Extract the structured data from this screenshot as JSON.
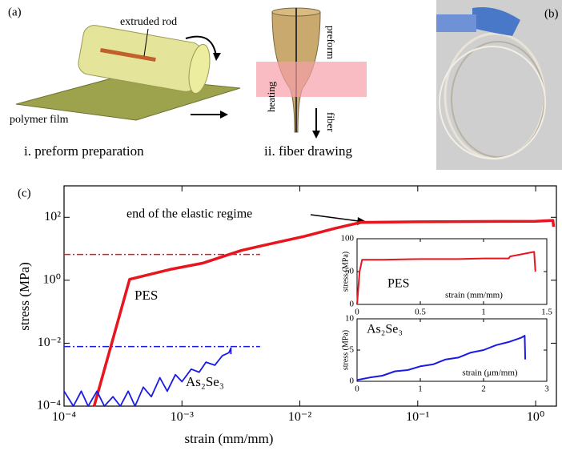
{
  "panel_a": {
    "label": "(a)",
    "rod_label": "extruded rod",
    "film_label": "polymer film",
    "step1": "i. preform preparation",
    "preform_label": "preform",
    "heating_label": "heating",
    "fiber_label": "fiber",
    "step2": "ii. fiber drawing"
  },
  "panel_b": {
    "label": "(b)"
  },
  "panel_c": {
    "label": "(c)"
  },
  "chart_data": [
    {
      "type": "line",
      "xscale": "log",
      "yscale": "log",
      "xlabel": "strain (mm/mm)",
      "ylabel": "stress (MPa)",
      "annotations": [
        {
          "text": "end of the elastic regime"
        }
      ],
      "xlim": [
        0.0001,
        1.5
      ],
      "ylim": [
        0.0001,
        1000
      ],
      "xticks": [
        {
          "value": 0.0001,
          "label": "10⁻⁴"
        },
        {
          "value": 0.001,
          "label": "10⁻³"
        },
        {
          "value": 0.01,
          "label": "10⁻²"
        },
        {
          "value": 0.1,
          "label": "10⁻¹"
        },
        {
          "value": 1,
          "label": "10⁰"
        }
      ],
      "yticks": [
        {
          "value": 0.0001,
          "label": "10⁻⁴"
        },
        {
          "value": 0.01,
          "label": "10⁻²"
        },
        {
          "value": 1,
          "label": "10⁰"
        },
        {
          "value": 100,
          "label": "10²"
        }
      ],
      "hlines": [
        {
          "y": 6.6,
          "x": [
            0.0001,
            0.0046
          ],
          "color": "#e8141e"
        },
        {
          "y": 0.0078,
          "x": [
            0.0001,
            0.0046
          ],
          "color": "#1a1ae6"
        }
      ],
      "series": [
        {
          "name": "PES",
          "color": "#e8141e",
          "x": [
            0.00018,
            0.00036,
            0.00079,
            0.0015,
            0.0032,
            0.005,
            0.011,
            0.02,
            0.033,
            0.1,
            0.5,
            1.0,
            1.4,
            1.42
          ],
          "values": [
            0.0001,
            1.07,
            2.2,
            3.5,
            8.9,
            13,
            25,
            45,
            69,
            72,
            74,
            75,
            80,
            50
          ]
        },
        {
          "name": "As₂Se₃",
          "color": "#1a1ae6",
          "x": [
            0.0001,
            0.00012,
            0.00014,
            0.00016,
            0.00019,
            0.00022,
            0.00026,
            0.0003,
            0.00035,
            0.0004,
            0.00047,
            0.00055,
            0.00065,
            0.00075,
            0.00088,
            0.001,
            0.0012,
            0.0014,
            0.0016,
            0.0019,
            0.0022,
            0.0025,
            0.0026,
            0.0026
          ],
          "values": [
            0.0003,
            0.0001,
            0.0003,
            0.0001,
            0.0003,
            0.0001,
            0.0002,
            0.0001,
            0.0003,
            0.0001,
            0.0004,
            0.0002,
            0.0008,
            0.0003,
            0.001,
            0.0006,
            0.0015,
            0.0012,
            0.0025,
            0.002,
            0.004,
            0.005,
            0.007,
            0.0045
          ]
        }
      ]
    },
    {
      "type": "line",
      "xlabel": "strain (mm/mm)",
      "ylabel": "stress (MPa)",
      "xlim": [
        0,
        1.5
      ],
      "ylim": [
        0,
        100
      ],
      "xticks": [
        0,
        0.5,
        1,
        1.5
      ],
      "yticks": [
        0,
        50,
        100
      ],
      "series": [
        {
          "name": "PES",
          "color": "#e8141e",
          "x": [
            0,
            0.02,
            0.04,
            0.2,
            0.5,
            0.8,
            1.0,
            1.2,
            1.21,
            1.4,
            1.41
          ],
          "values": [
            0,
            50,
            68,
            68,
            69,
            69,
            70,
            70,
            73,
            80,
            50
          ]
        }
      ]
    },
    {
      "type": "line",
      "xlabel": "strain (μm/mm)",
      "ylabel": "stress (MPa)",
      "xlim": [
        0,
        3
      ],
      "ylim": [
        0,
        10
      ],
      "xticks": [
        0,
        1,
        2,
        3
      ],
      "yticks": [
        0,
        5,
        10
      ],
      "series": [
        {
          "name": "As₂Se₃",
          "color": "#1a1ae6",
          "x": [
            0,
            0.2,
            0.4,
            0.6,
            0.8,
            1.0,
            1.2,
            1.4,
            1.6,
            1.8,
            2.0,
            2.2,
            2.4,
            2.6,
            2.65,
            2.66
          ],
          "values": [
            0.2,
            0.6,
            0.9,
            1.6,
            1.8,
            2.4,
            2.7,
            3.5,
            3.8,
            4.6,
            5.0,
            5.8,
            6.3,
            7.0,
            7.3,
            3.5
          ]
        }
      ]
    }
  ]
}
